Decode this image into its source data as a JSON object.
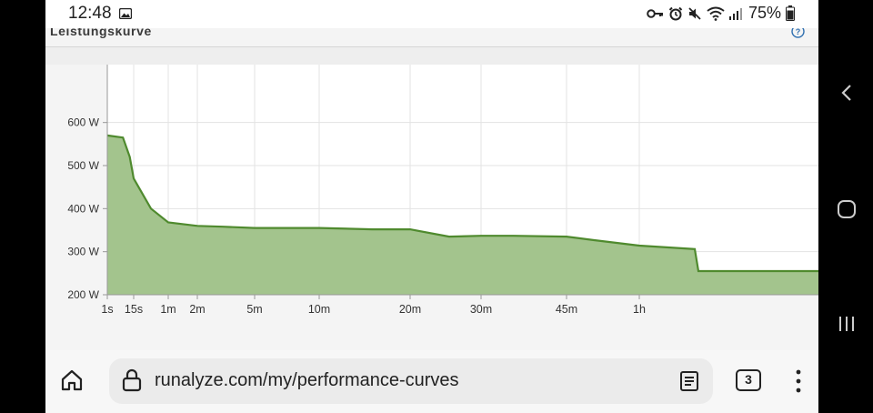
{
  "status_bar": {
    "time": "12:48",
    "battery": "75%",
    "icons": [
      "image-icon",
      "key-icon",
      "alarm-icon",
      "mute-icon",
      "wifi-icon",
      "signal-icon",
      "battery-icon"
    ]
  },
  "panel": {
    "title": "Leistungskurve",
    "help_icon": "help-icon"
  },
  "chart_data": {
    "type": "area",
    "x_ticks": [
      "1s",
      "15s",
      "1m",
      "2m",
      "5m",
      "10m",
      "20m",
      "30m",
      "45m",
      "1h"
    ],
    "y_ticks": [
      "200 W",
      "300 W",
      "400 W",
      "500 W",
      "600 W"
    ],
    "ylim": [
      200,
      650
    ],
    "x": [
      "1s",
      "5s",
      "10s",
      "15s",
      "30s",
      "1m",
      "2m",
      "3m",
      "5m",
      "7m",
      "10m",
      "15m",
      "20m",
      "25m",
      "30m",
      "35m",
      "45m",
      "50m",
      "1h",
      "1h10m",
      "1h11m",
      "1h30m"
    ],
    "values": [
      570,
      565,
      520,
      470,
      400,
      368,
      360,
      358,
      355,
      355,
      355,
      352,
      352,
      335,
      337,
      337,
      335,
      327,
      314,
      306,
      255,
      255
    ],
    "color": "#4f8a2e",
    "fill": "#a3c48d",
    "grid": true
  },
  "browser": {
    "url": "runalyze.com/my/performance-curves",
    "tab_count": "3",
    "icons": [
      "home-icon",
      "lock-icon",
      "reader-icon",
      "menu-icon"
    ]
  },
  "nav": {
    "icons": [
      "back-icon",
      "home-circle-icon",
      "recents-icon"
    ]
  }
}
